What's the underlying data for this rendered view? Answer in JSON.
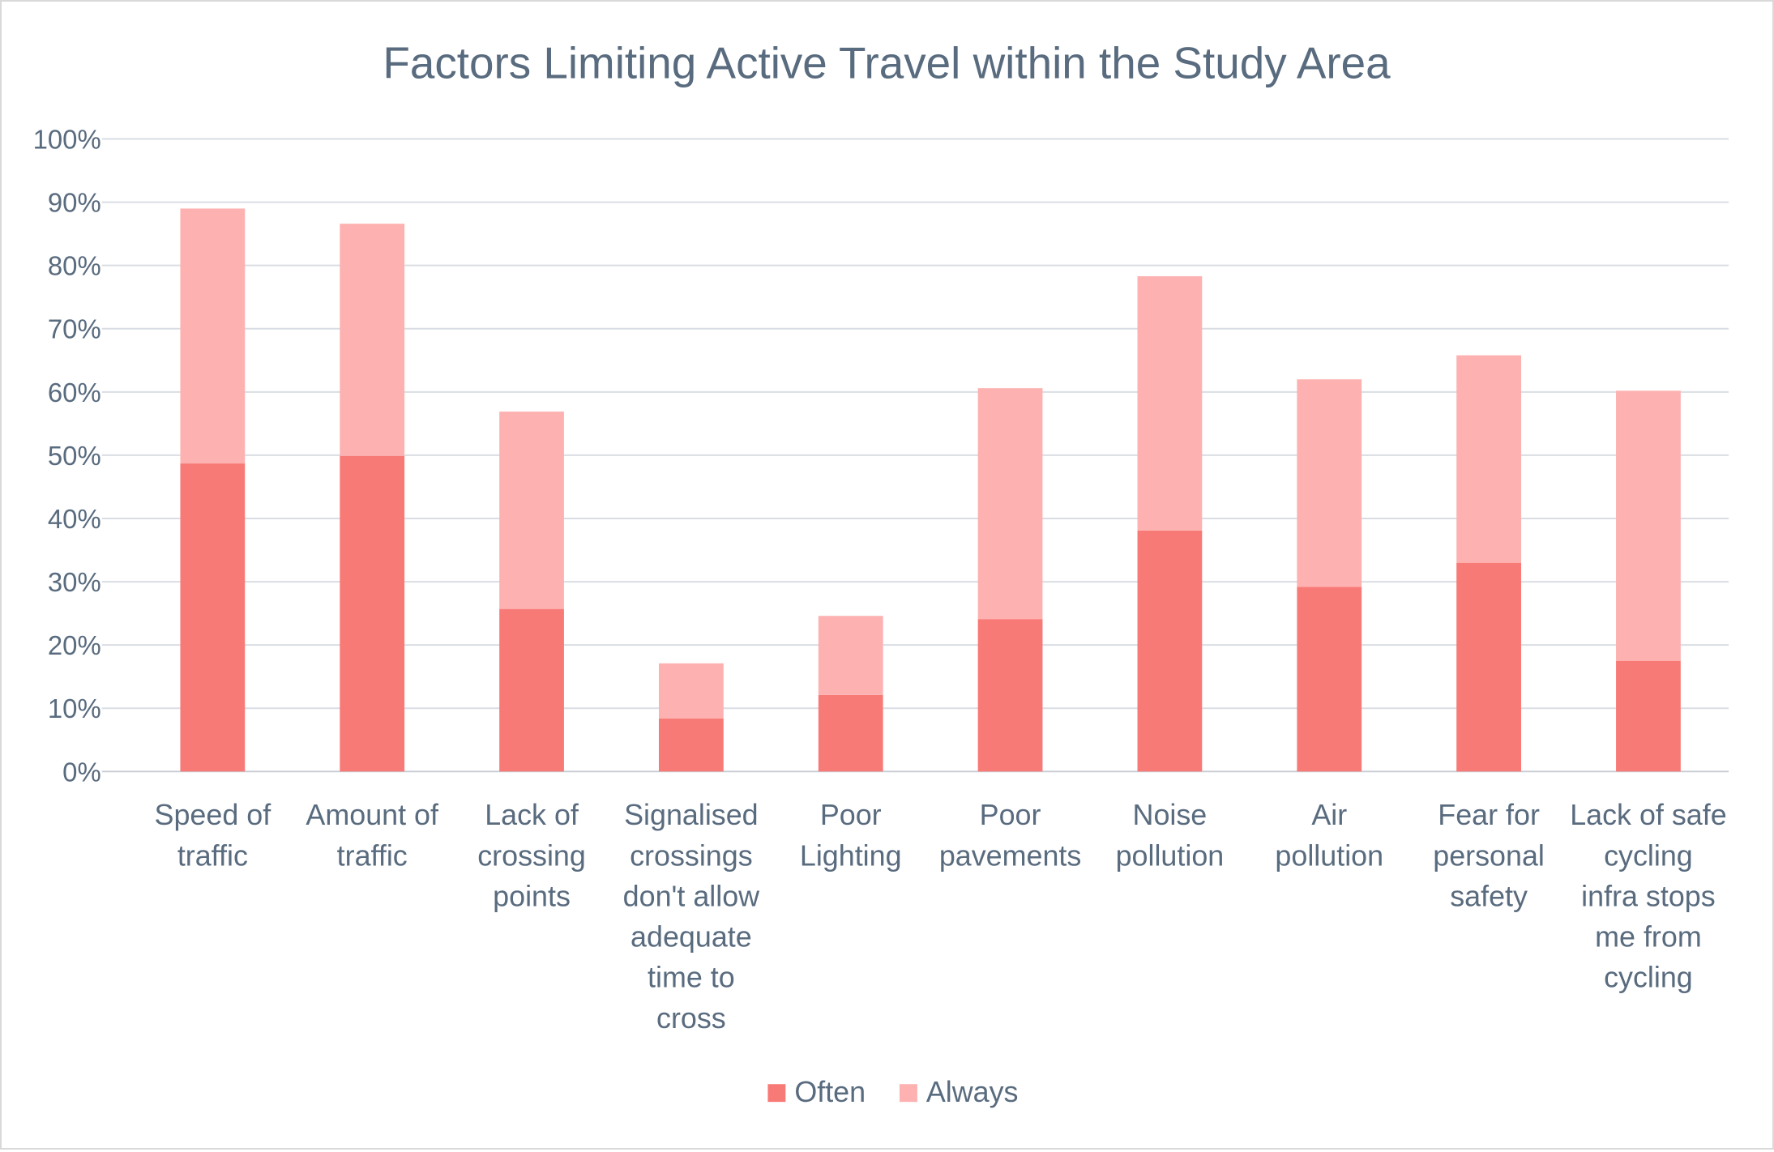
{
  "chart_data": {
    "type": "bar",
    "stacked": true,
    "title": "Factors Limiting Active Travel within the Study Area",
    "xlabel": "",
    "ylabel": "",
    "ylim": [
      0,
      100
    ],
    "yticks": [
      "0%",
      "10%",
      "20%",
      "30%",
      "40%",
      "50%",
      "60%",
      "70%",
      "80%",
      "90%",
      "100%"
    ],
    "grid": true,
    "legend_position": "bottom",
    "categories": [
      [
        "Speed of",
        "traffic"
      ],
      [
        "Amount of",
        "traffic"
      ],
      [
        "Lack of",
        "crossing",
        "points"
      ],
      [
        "Signalised",
        "crossings",
        "don't allow",
        "adequate",
        "time to",
        "cross"
      ],
      [
        "Poor",
        "Lighting"
      ],
      [
        "Poor",
        "pavements"
      ],
      [
        "Noise",
        "pollution"
      ],
      [
        "Air",
        "pollution"
      ],
      [
        "Fear for",
        "personal",
        "safety"
      ],
      [
        "Lack of safe",
        "cycling",
        "infra stops",
        "me from",
        "cycling"
      ]
    ],
    "series": [
      {
        "name": "Often",
        "color": "#f87a77",
        "values": [
          48.7,
          49.9,
          25.7,
          8.4,
          12.1,
          24.1,
          38.1,
          29.2,
          33.0,
          17.5
        ]
      },
      {
        "name": "Always",
        "color": "#fdb2b1",
        "values": [
          40.3,
          36.7,
          31.2,
          8.7,
          12.5,
          36.5,
          40.2,
          32.8,
          32.8,
          42.7
        ]
      }
    ],
    "colors": {
      "text": "#596b7e",
      "grid": "#d9dde3"
    }
  }
}
